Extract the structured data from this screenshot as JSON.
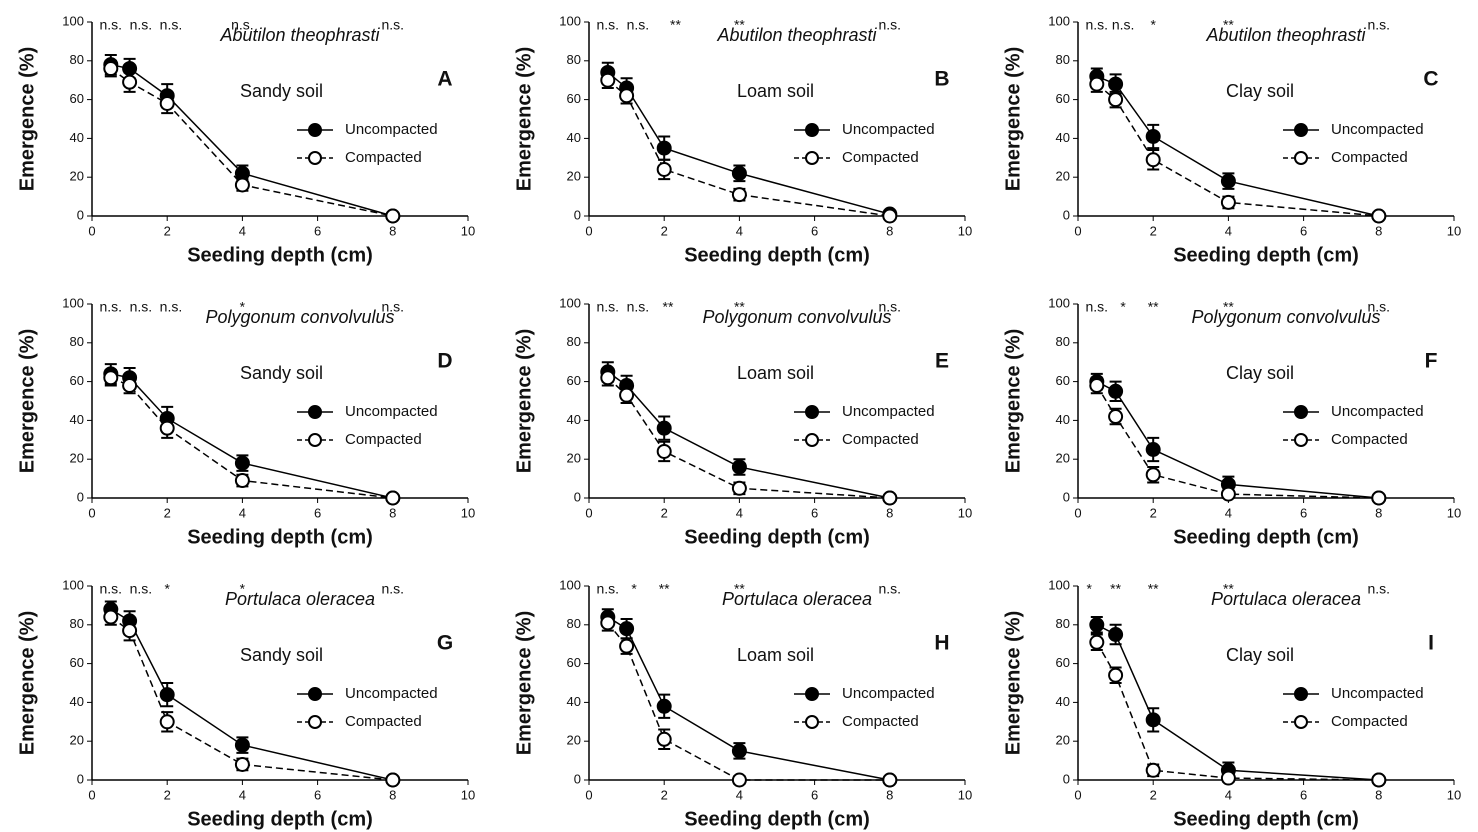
{
  "chart_data": [
    {
      "type": "line",
      "title": "Abutilon theophrasti",
      "subtitle": "Sandy soil",
      "panel": "A",
      "xlabel": "Seeding depth (cm)",
      "ylabel": "Emergence (%)",
      "x": [
        0.5,
        1,
        2,
        4,
        8
      ],
      "xlim": [
        0,
        10
      ],
      "xticks": [
        0,
        2,
        4,
        6,
        8,
        10
      ],
      "ylim": [
        0,
        100
      ],
      "yticks": [
        0,
        20,
        40,
        60,
        80,
        100
      ],
      "series": [
        {
          "name": "Uncompacted",
          "color": "#000000",
          "values": [
            78,
            76,
            62,
            22,
            0
          ],
          "errors": [
            5,
            5,
            6,
            4,
            0
          ]
        },
        {
          "name": "Compacted",
          "color": "#000000",
          "values": [
            76,
            69,
            58,
            16,
            0
          ],
          "errors": [
            4,
            5,
            5,
            3,
            0
          ]
        }
      ],
      "annotations": [
        {
          "x": 0.5,
          "text": "n.s."
        },
        {
          "x": 1.3,
          "text": "n.s."
        },
        {
          "x": 2.1,
          "text": "n.s."
        },
        {
          "x": 4,
          "text": "n.s."
        },
        {
          "x": 8,
          "text": "n.s."
        }
      ]
    },
    {
      "type": "line",
      "title": "Polygonum convolvulus",
      "subtitle": "Sandy soil",
      "panel": "D",
      "xlabel": "Seeding depth (cm)",
      "ylabel": "Emergence (%)",
      "x": [
        0.5,
        1,
        2,
        4,
        8
      ],
      "xlim": [
        0,
        10
      ],
      "xticks": [
        0,
        2,
        4,
        6,
        8,
        10
      ],
      "ylim": [
        0,
        100
      ],
      "yticks": [
        0,
        20,
        40,
        60,
        80,
        100
      ],
      "series": [
        {
          "name": "Uncompacted",
          "color": "#000000",
          "values": [
            64,
            62,
            41,
            18,
            0
          ],
          "errors": [
            5,
            5,
            6,
            4,
            0
          ]
        },
        {
          "name": "Compacted",
          "color": "#000000",
          "values": [
            62,
            58,
            36,
            9,
            0
          ],
          "errors": [
            4,
            4,
            5,
            3,
            0
          ]
        }
      ],
      "annotations": [
        {
          "x": 0.5,
          "text": "n.s."
        },
        {
          "x": 1.3,
          "text": "n.s."
        },
        {
          "x": 2.1,
          "text": "n.s."
        },
        {
          "x": 4,
          "text": "*"
        },
        {
          "x": 8,
          "text": "n.s."
        }
      ]
    },
    {
      "type": "line",
      "title": "Portulaca oleracea",
      "subtitle": "Sandy soil",
      "panel": "G",
      "xlabel": "Seeding depth (cm)",
      "ylabel": "Emergence (%)",
      "x": [
        0.5,
        1,
        2,
        4,
        8
      ],
      "xlim": [
        0,
        10
      ],
      "xticks": [
        0,
        2,
        4,
        6,
        8,
        10
      ],
      "ylim": [
        0,
        100
      ],
      "yticks": [
        0,
        20,
        40,
        60,
        80,
        100
      ],
      "series": [
        {
          "name": "Uncompacted",
          "color": "#000000",
          "values": [
            88,
            82,
            44,
            18,
            0
          ],
          "errors": [
            4,
            5,
            6,
            4,
            0
          ]
        },
        {
          "name": "Compacted",
          "color": "#000000",
          "values": [
            84,
            77,
            30,
            8,
            0
          ],
          "errors": [
            4,
            5,
            5,
            3,
            0
          ]
        }
      ],
      "annotations": [
        {
          "x": 0.5,
          "text": "n.s."
        },
        {
          "x": 1.3,
          "text": "n.s."
        },
        {
          "x": 2,
          "text": "*"
        },
        {
          "x": 4,
          "text": "*"
        },
        {
          "x": 8,
          "text": "n.s."
        }
      ]
    },
    {
      "type": "line",
      "title": "Abutilon theophrasti",
      "subtitle": "Loam soil",
      "panel": "B",
      "xlabel": "Seeding depth (cm)",
      "ylabel": "Emergence (%)",
      "x": [
        0.5,
        1,
        2,
        4,
        8
      ],
      "xlim": [
        0,
        10
      ],
      "xticks": [
        0,
        2,
        4,
        6,
        8,
        10
      ],
      "ylim": [
        0,
        100
      ],
      "yticks": [
        0,
        20,
        40,
        60,
        80,
        100
      ],
      "series": [
        {
          "name": "Uncompacted",
          "color": "#000000",
          "values": [
            74,
            66,
            35,
            22,
            1
          ],
          "errors": [
            5,
            5,
            6,
            4,
            0
          ]
        },
        {
          "name": "Compacted",
          "color": "#000000",
          "values": [
            70,
            62,
            24,
            11,
            0
          ],
          "errors": [
            4,
            4,
            5,
            3,
            0
          ]
        }
      ],
      "annotations": [
        {
          "x": 0.5,
          "text": "n.s."
        },
        {
          "x": 1.3,
          "text": "n.s."
        },
        {
          "x": 2.3,
          "text": "**"
        },
        {
          "x": 4,
          "text": "**"
        },
        {
          "x": 8,
          "text": "n.s."
        }
      ]
    },
    {
      "type": "line",
      "title": "Polygonum convolvulus",
      "subtitle": "Loam soil",
      "panel": "E",
      "xlabel": "Seeding depth (cm)",
      "ylabel": "Emergence (%)",
      "x": [
        0.5,
        1,
        2,
        4,
        8
      ],
      "xlim": [
        0,
        10
      ],
      "xticks": [
        0,
        2,
        4,
        6,
        8,
        10
      ],
      "ylim": [
        0,
        100
      ],
      "yticks": [
        0,
        20,
        40,
        60,
        80,
        100
      ],
      "series": [
        {
          "name": "Uncompacted",
          "color": "#000000",
          "values": [
            65,
            58,
            36,
            16,
            0
          ],
          "errors": [
            5,
            5,
            6,
            4,
            0
          ]
        },
        {
          "name": "Compacted",
          "color": "#000000",
          "values": [
            62,
            53,
            24,
            5,
            0
          ],
          "errors": [
            4,
            4,
            5,
            3,
            0
          ]
        }
      ],
      "annotations": [
        {
          "x": 0.5,
          "text": "n.s."
        },
        {
          "x": 1.3,
          "text": "n.s."
        },
        {
          "x": 2.1,
          "text": "**"
        },
        {
          "x": 4,
          "text": "**"
        },
        {
          "x": 8,
          "text": "n.s."
        }
      ]
    },
    {
      "type": "line",
      "title": "Portulaca oleracea",
      "subtitle": "Loam soil",
      "panel": "H",
      "xlabel": "Seeding depth (cm)",
      "ylabel": "Emergence (%)",
      "x": [
        0.5,
        1,
        2,
        4,
        8
      ],
      "xlim": [
        0,
        10
      ],
      "xticks": [
        0,
        2,
        4,
        6,
        8,
        10
      ],
      "ylim": [
        0,
        100
      ],
      "yticks": [
        0,
        20,
        40,
        60,
        80,
        100
      ],
      "series": [
        {
          "name": "Uncompacted",
          "color": "#000000",
          "values": [
            84,
            78,
            38,
            15,
            0
          ],
          "errors": [
            4,
            5,
            6,
            4,
            0
          ]
        },
        {
          "name": "Compacted",
          "color": "#000000",
          "values": [
            81,
            69,
            21,
            0,
            0
          ],
          "errors": [
            4,
            4,
            5,
            2,
            0
          ]
        }
      ],
      "annotations": [
        {
          "x": 0.5,
          "text": "n.s."
        },
        {
          "x": 1.2,
          "text": "*"
        },
        {
          "x": 2,
          "text": "**"
        },
        {
          "x": 4,
          "text": "**"
        },
        {
          "x": 8,
          "text": "n.s."
        }
      ]
    },
    {
      "type": "line",
      "title": "Abutilon theophrasti",
      "subtitle": "Clay soil",
      "panel": "C",
      "xlabel": "Seeding depth (cm)",
      "ylabel": "Emergence (%)",
      "x": [
        0.5,
        1,
        2,
        4,
        8
      ],
      "xlim": [
        0,
        10
      ],
      "xticks": [
        0,
        2,
        4,
        6,
        8,
        10
      ],
      "ylim": [
        0,
        100
      ],
      "yticks": [
        0,
        20,
        40,
        60,
        80,
        100
      ],
      "series": [
        {
          "name": "Uncompacted",
          "color": "#000000",
          "values": [
            72,
            68,
            41,
            18,
            0
          ],
          "errors": [
            4,
            5,
            6,
            4,
            0
          ]
        },
        {
          "name": "Compacted",
          "color": "#000000",
          "values": [
            68,
            60,
            29,
            7,
            0
          ],
          "errors": [
            4,
            4,
            5,
            3,
            0
          ]
        }
      ],
      "annotations": [
        {
          "x": 0.5,
          "text": "n.s."
        },
        {
          "x": 1.2,
          "text": "n.s."
        },
        {
          "x": 2,
          "text": "*"
        },
        {
          "x": 4,
          "text": "**"
        },
        {
          "x": 8,
          "text": "n.s."
        }
      ]
    },
    {
      "type": "line",
      "title": "Polygonum convolvulus",
      "subtitle": "Clay soil",
      "panel": "F",
      "xlabel": "Seeding depth (cm)",
      "ylabel": "Emergence (%)",
      "x": [
        0.5,
        1,
        2,
        4,
        8
      ],
      "xlim": [
        0,
        10
      ],
      "xticks": [
        0,
        2,
        4,
        6,
        8,
        10
      ],
      "ylim": [
        0,
        100
      ],
      "yticks": [
        0,
        20,
        40,
        60,
        80,
        100
      ],
      "series": [
        {
          "name": "Uncompacted",
          "color": "#000000",
          "values": [
            60,
            55,
            25,
            7,
            0
          ],
          "errors": [
            4,
            5,
            6,
            4,
            0
          ]
        },
        {
          "name": "Compacted",
          "color": "#000000",
          "values": [
            58,
            42,
            12,
            2,
            0
          ],
          "errors": [
            4,
            4,
            4,
            2,
            0
          ]
        }
      ],
      "annotations": [
        {
          "x": 0.5,
          "text": "n.s."
        },
        {
          "x": 1.2,
          "text": "*"
        },
        {
          "x": 2,
          "text": "**"
        },
        {
          "x": 4,
          "text": "**"
        },
        {
          "x": 8,
          "text": "n.s."
        }
      ]
    },
    {
      "type": "line",
      "title": "Portulaca oleracea",
      "subtitle": "Clay soil",
      "panel": "I",
      "xlabel": "Seeding depth (cm)",
      "ylabel": "Emergence (%)",
      "x": [
        0.5,
        1,
        2,
        4,
        8
      ],
      "xlim": [
        0,
        10
      ],
      "xticks": [
        0,
        2,
        4,
        6,
        8,
        10
      ],
      "ylim": [
        0,
        100
      ],
      "yticks": [
        0,
        20,
        40,
        60,
        80,
        100
      ],
      "series": [
        {
          "name": "Uncompacted",
          "color": "#000000",
          "values": [
            80,
            75,
            31,
            5,
            0
          ],
          "errors": [
            4,
            5,
            6,
            4,
            0
          ]
        },
        {
          "name": "Compacted",
          "color": "#000000",
          "values": [
            71,
            54,
            5,
            1,
            0
          ],
          "errors": [
            4,
            4,
            3,
            2,
            0
          ]
        }
      ],
      "annotations": [
        {
          "x": 0.3,
          "text": "*"
        },
        {
          "x": 1,
          "text": "**"
        },
        {
          "x": 2,
          "text": "**"
        },
        {
          "x": 4,
          "text": "**"
        },
        {
          "x": 8,
          "text": "n.s."
        }
      ]
    }
  ]
}
